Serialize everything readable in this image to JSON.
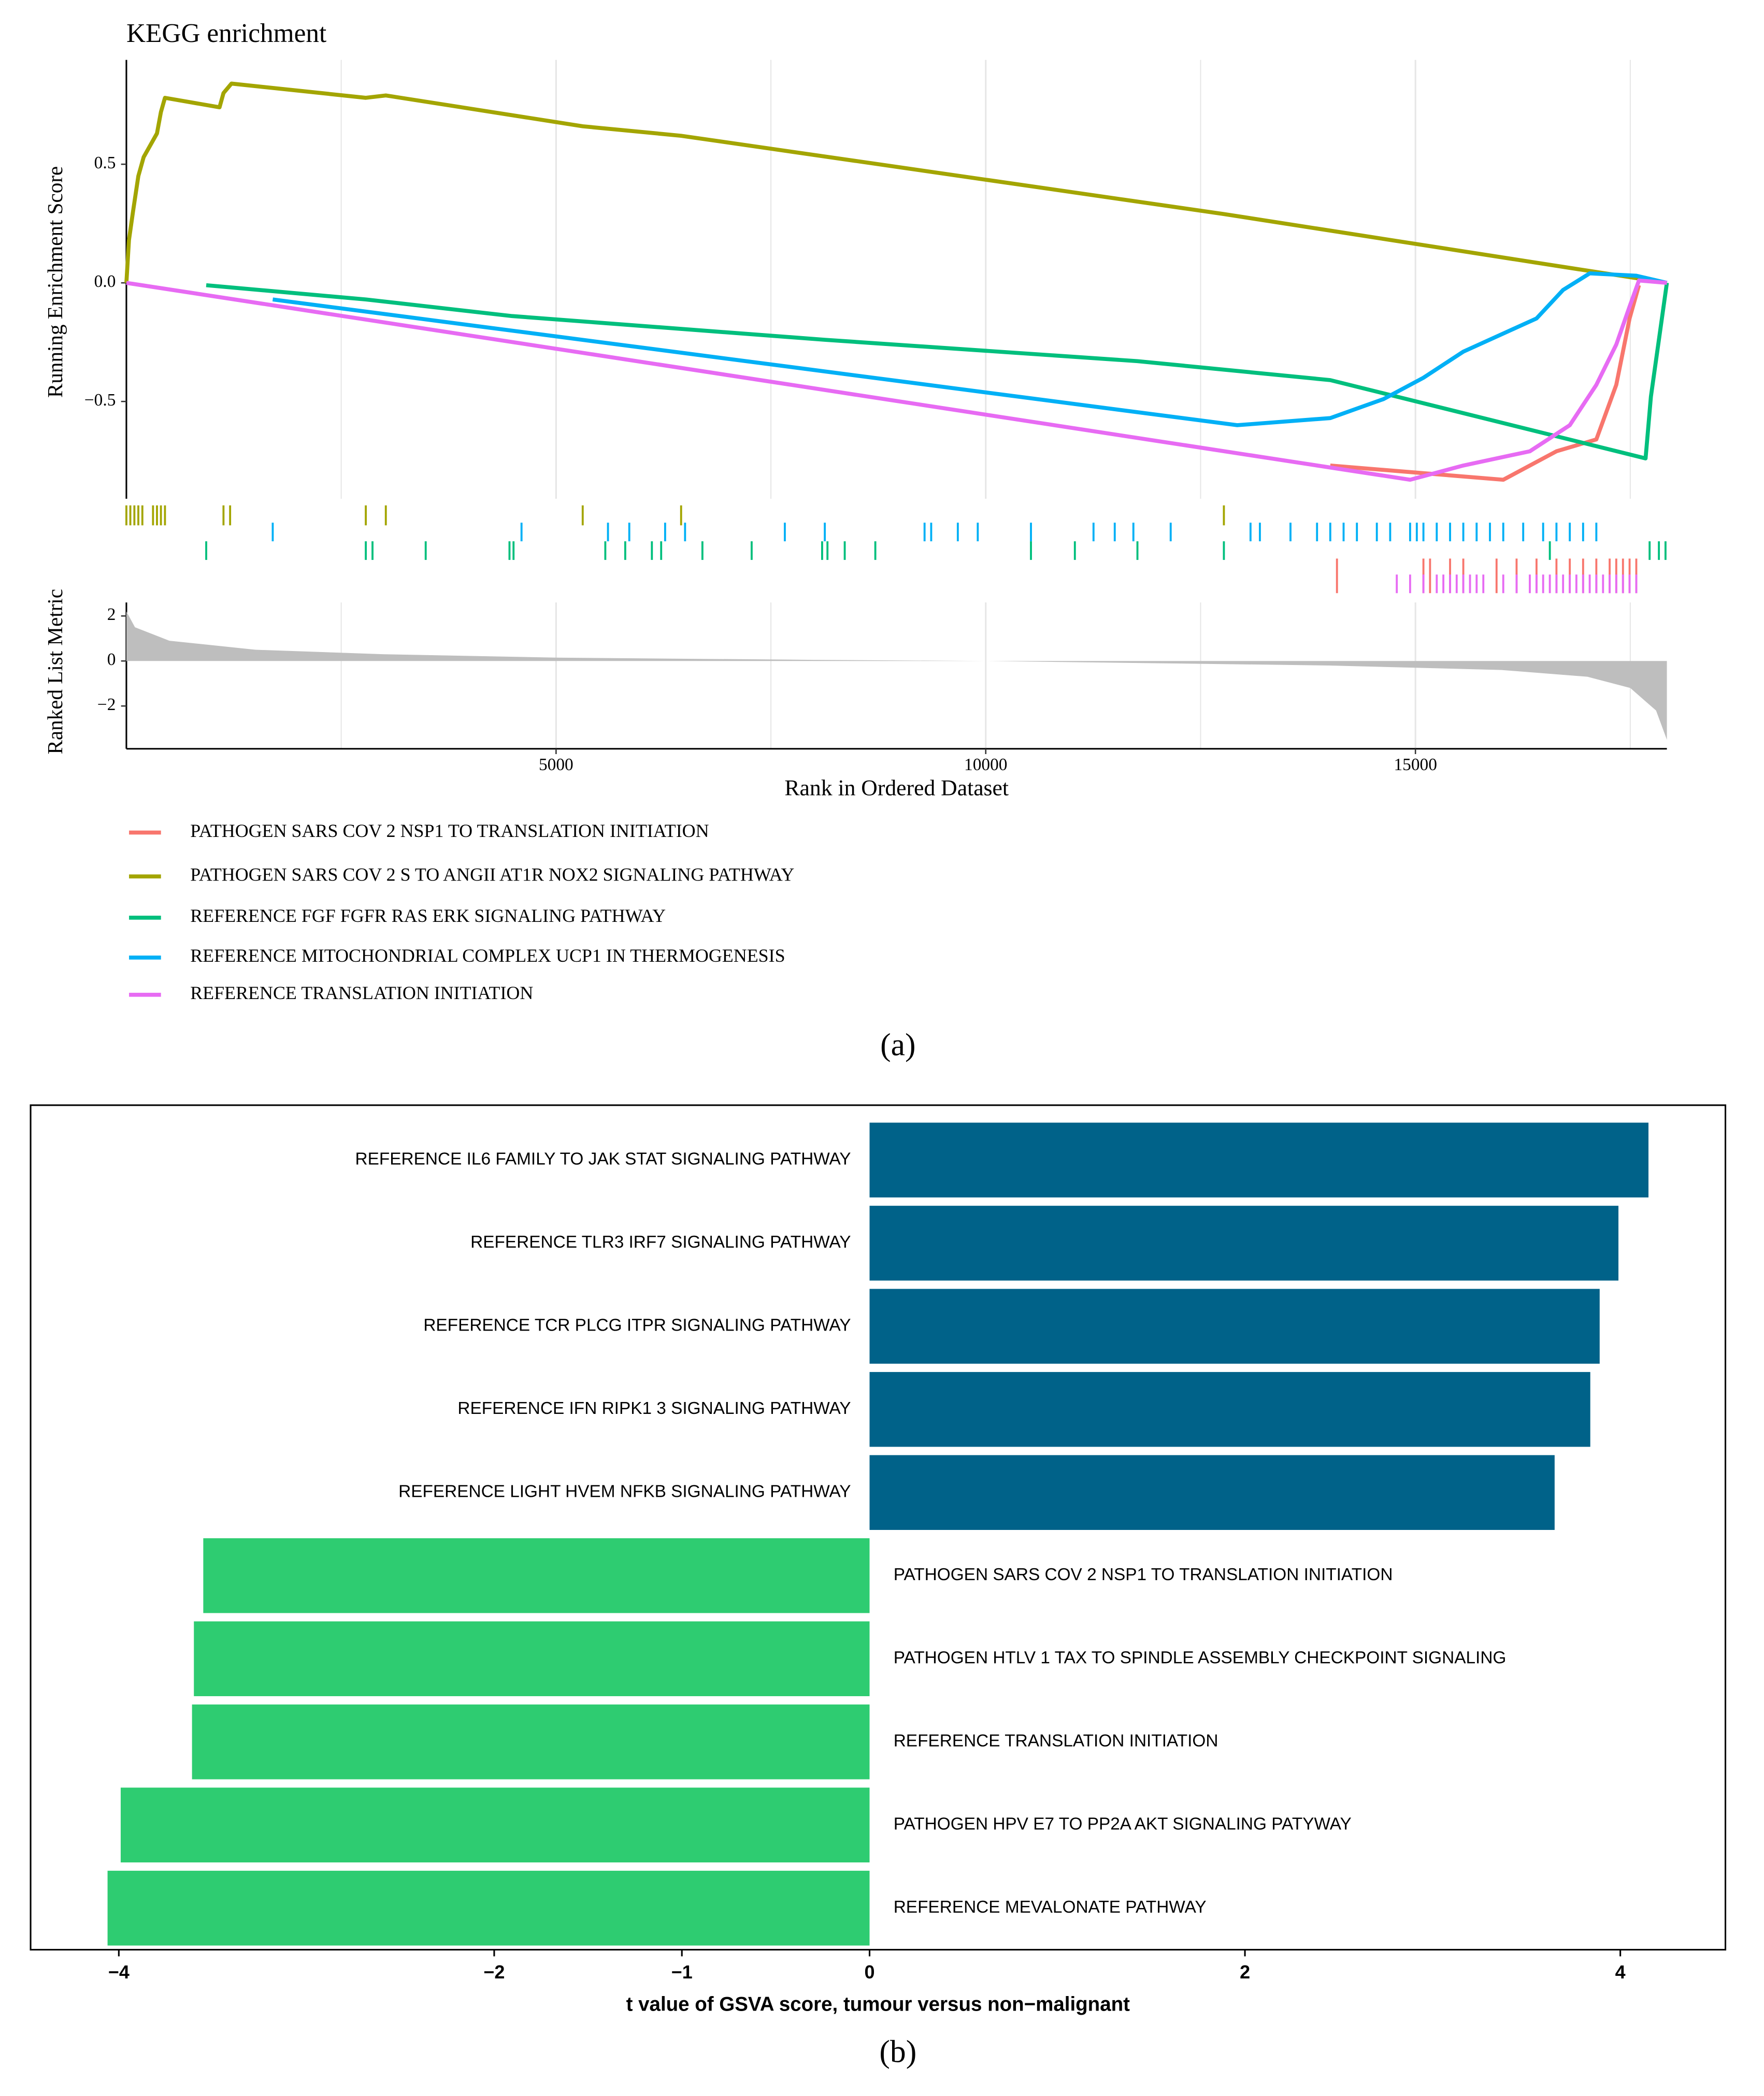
{
  "chart_data": [
    {
      "type": "line",
      "title": "KEGG enrichment",
      "ylabel": "Running Enrichment Score",
      "xlabel": "Rank in Ordered Dataset",
      "caption": "(a)",
      "xlim": [
        0,
        17926
      ],
      "xticks": [
        5000,
        10000,
        15000
      ],
      "xminor": [
        2500,
        7500,
        12500,
        17500
      ],
      "grid": true,
      "ylim": [
        -0.91,
        0.94
      ],
      "yticks": [
        0.5,
        {
          "value": 0,
          "label": "0.0"
        },
        {
          "value": -0.5,
          "label": "−0.5"
        }
      ],
      "series": [
        {
          "name": "PATHOGEN SARS COV 2 NSP1 TO TRANSLATION INITIATION",
          "color": "#F8766D",
          "x": [
            14009,
            16022,
            16641,
            17105,
            17337,
            17492,
            17601
          ],
          "values": [
            -0.77,
            -0.83,
            -0.71,
            -0.66,
            -0.43,
            -0.15,
            -0.01
          ],
          "hits": [
            14087,
            15093,
            15170,
            15403,
            15557,
            15944,
            16177,
            16409,
            16641,
            16796,
            16951,
            17105,
            17260,
            17337,
            17415,
            17492,
            17570
          ]
        },
        {
          "name": "PATHOGEN SARS COV 2 S TO ANGII AT1R NOX2 SIGNALING PATHWAY",
          "color": "#A3A500",
          "x": [
            0,
            30,
            77,
            139,
            201,
            356,
            402,
            449,
            1084,
            1130,
            1223,
            2786,
            3019,
            5310,
            6455,
            12771,
            17028,
            17926
          ],
          "values": [
            0,
            0.18,
            0.3,
            0.45,
            0.53,
            0.63,
            0.72,
            0.78,
            0.74,
            0.8,
            0.84,
            0.78,
            0.79,
            0.66,
            0.62,
            0.29,
            0.05,
            0
          ],
          "hits": [
            0,
            46,
            93,
            139,
            186,
            310,
            356,
            402,
            449,
            1130,
            1207,
            2786,
            3019,
            5310,
            6455,
            12771
          ]
        },
        {
          "name": "REFERENCE FGF FGFR RAS ERK SIGNALING PATHWAY",
          "color": "#00BF7D",
          "x": [
            929,
            2786,
            4489,
            8127,
            11765,
            14009,
            17678,
            17740,
            17926
          ],
          "values": [
            -0.01,
            -0.07,
            -0.14,
            -0.24,
            -0.33,
            -0.41,
            -0.74,
            -0.48,
            0
          ],
          "hits": [
            929,
            2786,
            2864,
            3483,
            4458,
            4505,
            5573,
            5805,
            6115,
            6223,
            6703,
            7276,
            8096,
            8158,
            8359,
            8715,
            10526,
            11037,
            11765,
            12771,
            16564,
            17725,
            17833,
            17910
          ]
        },
        {
          "name": "REFERENCE MITOCHONDRIAL COMPLEX UCP1 IN THERMOGENESIS",
          "color": "#00B0F6",
          "x": [
            1703,
            12926,
            14009,
            14628,
            15093,
            15557,
            16409,
            16718,
            17028,
            17570,
            17926
          ],
          "values": [
            -0.07,
            -0.6,
            -0.57,
            -0.49,
            -0.4,
            -0.29,
            -0.15,
            -0.03,
            0.04,
            0.03,
            0
          ],
          "hits": [
            1703,
            4598,
            5604,
            5852,
            6269,
            6501,
            7662,
            8127,
            9288,
            9365,
            9675,
            9907,
            10526,
            11254,
            11501,
            11718,
            12152,
            13081,
            13190,
            13546,
            13855,
            14009,
            14164,
            14319,
            14551,
            14706,
            14938,
            15016,
            15093,
            15248,
            15403,
            15557,
            15712,
            15867,
            16022,
            16254,
            16486,
            16641,
            16796,
            16951,
            17105
          ]
        },
        {
          "name": "REFERENCE TRANSLATION INITIATION",
          "color": "#E76BF3",
          "x": [
            0,
            14938,
            15557,
            16331,
            16796,
            17105,
            17337,
            17492,
            17601,
            17926
          ],
          "values": [
            0,
            -0.83,
            -0.77,
            -0.71,
            -0.6,
            -0.43,
            -0.26,
            -0.1,
            0.01,
            0
          ],
          "hits": [
            14783,
            14938,
            15093,
            15248,
            15325,
            15403,
            15480,
            15557,
            15635,
            15712,
            15790,
            16022,
            16177,
            16331,
            16409,
            16486,
            16564,
            16641,
            16718,
            16796,
            16873,
            16951,
            17028,
            17105,
            17183,
            17260,
            17337,
            17415,
            17492,
            17570
          ]
        }
      ],
      "metric": {
        "label": "Ranked List Metric",
        "color": "#bebebe",
        "ylim": [
          -3.9,
          2.6
        ],
        "yticks": [
          2,
          0,
          {
            "value": -2,
            "label": "−2"
          }
        ],
        "x": [
          0,
          100,
          500,
          1500,
          3000,
          5000,
          8000,
          10000,
          12000,
          14000,
          16000,
          17000,
          17500,
          17800,
          17926
        ],
        "values": [
          2.2,
          1.5,
          0.9,
          0.5,
          0.3,
          0.15,
          0.05,
          0,
          -0.1,
          -0.2,
          -0.4,
          -0.7,
          -1.2,
          -2.2,
          -3.5
        ]
      }
    },
    {
      "type": "bar",
      "orientation": "horizontal",
      "xlabel": "t value of GSVA score, tumour versus non−malignant",
      "caption": "(b)",
      "xlim": [
        -4.47,
        4.56
      ],
      "xticks": [
        {
          "value": -4,
          "label": "−4"
        },
        {
          "value": -2,
          "label": "−2"
        },
        {
          "value": -1,
          "label": "−1"
        },
        0,
        2,
        4
      ],
      "positive_color": "#006289",
      "negative_color": "#2ECC71",
      "categories": [
        "REFERENCE IL6 FAMILY TO JAK STAT SIGNALING PATHWAY",
        "REFERENCE TLR3 IRF7 SIGNALING PATHWAY",
        "REFERENCE TCR PLCG ITPR SIGNALING PATHWAY",
        "REFERENCE IFN RIPK1 3 SIGNALING PATHWAY",
        "REFERENCE LIGHT HVEM NFKB SIGNALING PATHWAY",
        "PATHOGEN SARS COV 2 NSP1 TO TRANSLATION INITIATION",
        "PATHOGEN HTLV 1 TAX TO SPINDLE ASSEMBLY CHECKPOINT SIGNALING",
        "REFERENCE TRANSLATION INITIATION",
        "PATHOGEN HPV E7 TO PP2A AKT SIGNALING PATYWAY",
        "REFERENCE MEVALONATE PATHWAY"
      ],
      "values": [
        4.15,
        3.99,
        3.89,
        3.84,
        3.65,
        -3.55,
        -3.6,
        -3.61,
        -3.99,
        -4.06
      ]
    }
  ]
}
